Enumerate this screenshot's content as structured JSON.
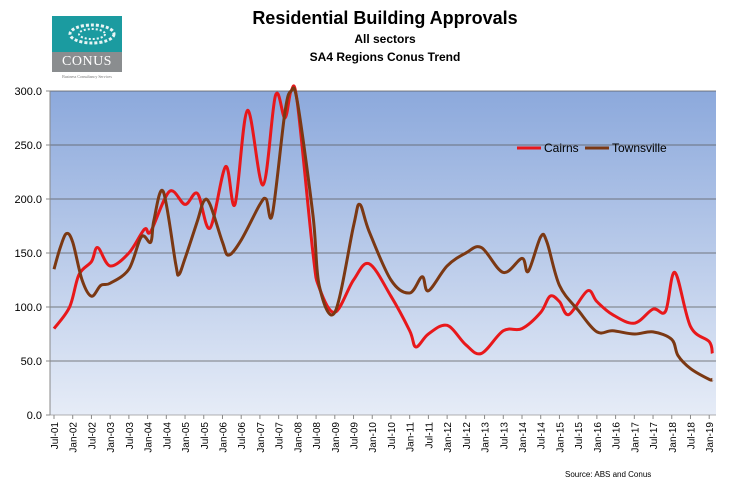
{
  "logo": {
    "name": "CONUS",
    "tagline": "Business Consultancy Services"
  },
  "source": "Source: ABS and Conus",
  "chart_data": {
    "type": "line",
    "title": "Residential Building Approvals",
    "subtitle": [
      "All sectors",
      "SA4 Regions Conus Trend"
    ],
    "xlabel": "",
    "ylabel": "",
    "ylim": [
      0,
      300
    ],
    "yticks": [
      "0.0",
      "50.0",
      "100.0",
      "150.0",
      "200.0",
      "250.0",
      "300.0"
    ],
    "x_unit": "months since Jul-01",
    "xticks": [
      "Jul-01",
      "Jan-02",
      "Jul-02",
      "Jan-03",
      "Jul-03",
      "Jan-04",
      "Jul-04",
      "Jan-05",
      "Jul-05",
      "Jan-06",
      "Jul-06",
      "Jan-07",
      "Jul-07",
      "Jan-08",
      "Jul-08",
      "Jan-09",
      "Jul-09",
      "Jan-10",
      "Jul-10",
      "Jan-11",
      "Jul-11",
      "Jan-12",
      "Jul-12",
      "Jan-13",
      "Jul-13",
      "Jan-14",
      "Jul-14",
      "Jan-15",
      "Jul-15",
      "Jan-16",
      "Jul-16",
      "Jan-17",
      "Jul-17",
      "Jan-18",
      "Jul-18",
      "Jan-19"
    ],
    "grid": true,
    "legend_position": "top-right",
    "series": [
      {
        "name": "Cairns",
        "color": "#e8181b",
        "points": [
          [
            0,
            80
          ],
          [
            5,
            100
          ],
          [
            8,
            130
          ],
          [
            12,
            142
          ],
          [
            14,
            155
          ],
          [
            18,
            138
          ],
          [
            24,
            150
          ],
          [
            29,
            172
          ],
          [
            31,
            170
          ],
          [
            37,
            207
          ],
          [
            42,
            195
          ],
          [
            46,
            205
          ],
          [
            50,
            173
          ],
          [
            55,
            230
          ],
          [
            58,
            195
          ],
          [
            62,
            282
          ],
          [
            67,
            213
          ],
          [
            71,
            296
          ],
          [
            74,
            275
          ],
          [
            76,
            300
          ],
          [
            78,
            289
          ],
          [
            83,
            150
          ],
          [
            85,
            118
          ],
          [
            90,
            95
          ],
          [
            96,
            125
          ],
          [
            101,
            140
          ],
          [
            108,
            110
          ],
          [
            114,
            78
          ],
          [
            116,
            63
          ],
          [
            120,
            75
          ],
          [
            126,
            83
          ],
          [
            132,
            65
          ],
          [
            137,
            57
          ],
          [
            144,
            78
          ],
          [
            150,
            80
          ],
          [
            156,
            95
          ],
          [
            159,
            110
          ],
          [
            162,
            105
          ],
          [
            165,
            93
          ],
          [
            171,
            115
          ],
          [
            174,
            105
          ],
          [
            179,
            93
          ],
          [
            186,
            85
          ],
          [
            192,
            98
          ],
          [
            196,
            96
          ],
          [
            199,
            132
          ],
          [
            204,
            82
          ],
          [
            210,
            68
          ],
          [
            211,
            57
          ]
        ]
      },
      {
        "name": "Townsville",
        "color": "#7b3813",
        "points": [
          [
            0,
            135
          ],
          [
            2,
            155
          ],
          [
            4,
            168
          ],
          [
            6,
            160
          ],
          [
            9,
            125
          ],
          [
            12,
            110
          ],
          [
            15,
            120
          ],
          [
            18,
            122
          ],
          [
            24,
            135
          ],
          [
            28,
            165
          ],
          [
            31,
            160
          ],
          [
            32,
            180
          ],
          [
            35,
            207
          ],
          [
            39,
            140
          ],
          [
            40,
            130
          ],
          [
            42,
            145
          ],
          [
            46,
            180
          ],
          [
            48,
            198
          ],
          [
            50,
            195
          ],
          [
            54,
            160
          ],
          [
            56,
            148
          ],
          [
            60,
            162
          ],
          [
            66,
            195
          ],
          [
            68,
            200
          ],
          [
            70,
            186
          ],
          [
            74,
            280
          ],
          [
            76,
            300
          ],
          [
            78,
            290
          ],
          [
            83,
            185
          ],
          [
            85,
            120
          ],
          [
            90,
            95
          ],
          [
            96,
            175
          ],
          [
            98,
            195
          ],
          [
            101,
            170
          ],
          [
            108,
            125
          ],
          [
            114,
            113
          ],
          [
            118,
            128
          ],
          [
            120,
            115
          ],
          [
            126,
            138
          ],
          [
            132,
            150
          ],
          [
            137,
            155
          ],
          [
            144,
            132
          ],
          [
            150,
            145
          ],
          [
            152,
            133
          ],
          [
            156,
            165
          ],
          [
            158,
            160
          ],
          [
            162,
            120
          ],
          [
            168,
            97
          ],
          [
            174,
            77
          ],
          [
            179,
            78
          ],
          [
            186,
            75
          ],
          [
            192,
            77
          ],
          [
            198,
            70
          ],
          [
            200,
            55
          ],
          [
            204,
            43
          ],
          [
            210,
            33
          ],
          [
            211,
            33
          ]
        ]
      }
    ]
  }
}
